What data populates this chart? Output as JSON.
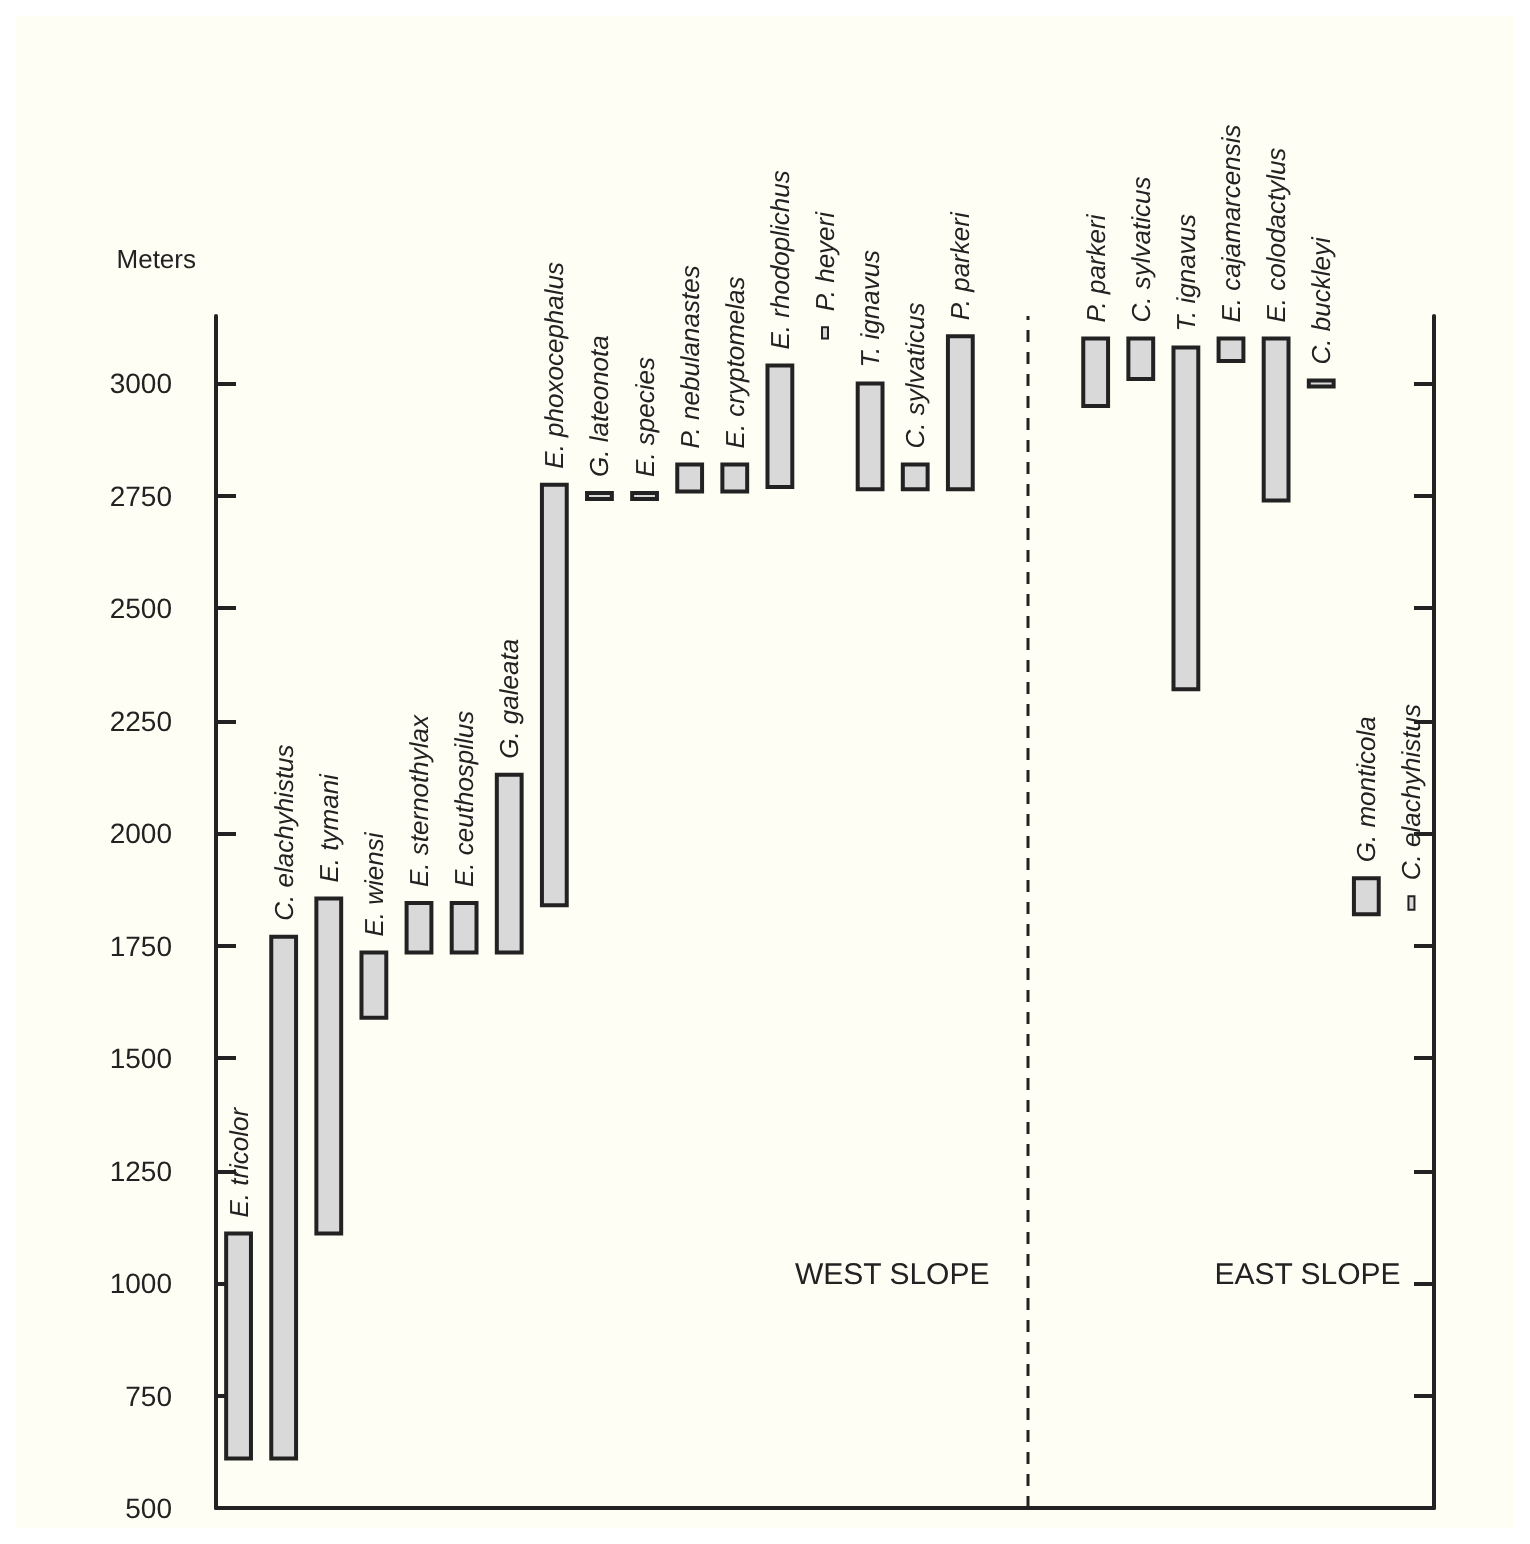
{
  "chart_data": {
    "type": "bar",
    "ylabel": "Meters",
    "categories": [
      "E. tricolor",
      "C. elachyhistus",
      "E. tymani",
      "E. wiensi",
      "E. sternothylax",
      "E. ceuthospilus",
      "G. galeata",
      "E. phoxocephalus",
      "G. lateonota",
      "E. species",
      "P. nebulanastes",
      "E. cryptomelas",
      "E. rhodoplichus",
      "P. heyeri",
      "T. ignavus",
      "C. sylvaticus",
      "P. parkeri",
      null,
      null,
      "P. parkeri",
      "C. sylvaticus",
      "T. ignavus",
      "E. cajamarcensis",
      "E. colodactylus",
      "C. buckleyi",
      "G. monticola",
      "C. elachyhistus"
    ],
    "color": "#d9d9d9",
    "base": [
      610,
      610,
      1110,
      1590,
      1735,
      1735,
      1735,
      1840,
      2750,
      2750,
      2760,
      2760,
      2770,
      3100,
      2765,
      2765,
      2765,
      null,
      null,
      2950,
      3010,
      2320,
      3050,
      2740,
      3000,
      1820,
      1830
    ],
    "values": [
      500,
      1160,
      745,
      145,
      110,
      110,
      395,
      935,
      0,
      0,
      60,
      60,
      270,
      25,
      235,
      55,
      340,
      null,
      null,
      150,
      90,
      760,
      50,
      360,
      0,
      80,
      30
    ],
    "ylim": [
      500,
      3150
    ],
    "yticks": [
      500,
      750,
      1000,
      1250,
      1500,
      1750,
      2000,
      2250,
      2500,
      2750,
      3000
    ],
    "ref_lines": [
      {
        "axis": "x",
        "value": null,
        "line_style": "dashed"
      }
    ],
    "annotations": [
      "WEST SLOPE",
      "EAST SLOPE"
    ],
    "grid": false
  }
}
